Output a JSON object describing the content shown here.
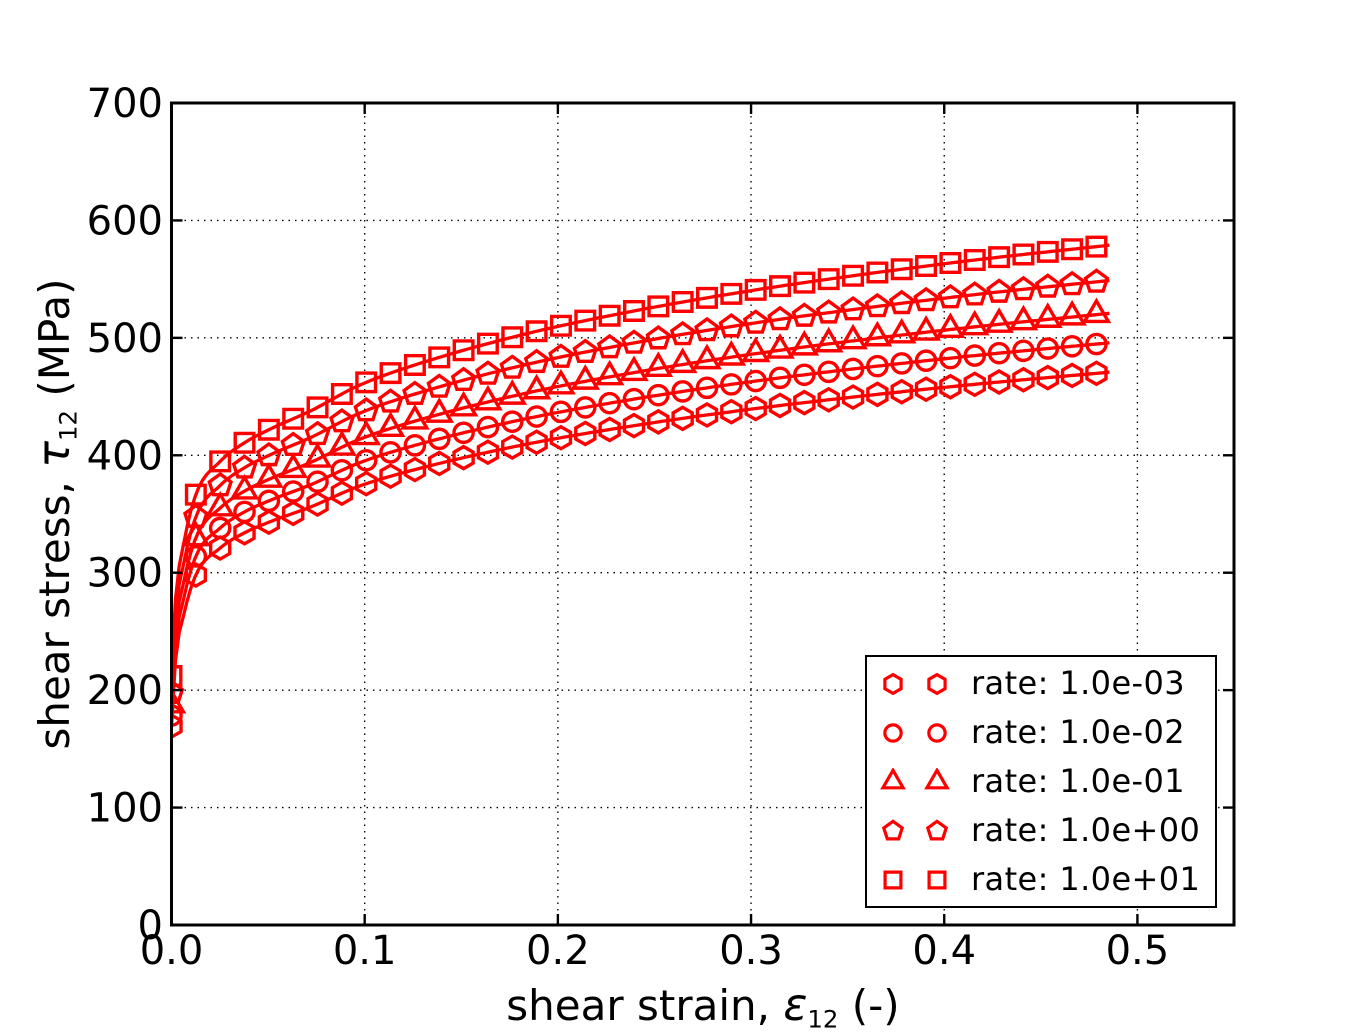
{
  "chart_data": {
    "type": "line",
    "title": "",
    "xlabel": {
      "prefix": "shear strain, ",
      "symbol": "ε",
      "sub": "12",
      "suffix": " (-)"
    },
    "ylabel": {
      "prefix": "shear stress, ",
      "symbol": "τ",
      "sub": "12",
      "suffix": " (MPa)"
    },
    "xlim": [
      0,
      0.55
    ],
    "ylim": [
      0,
      700
    ],
    "xtick_labels": [
      "0.0",
      "0.1",
      "0.2",
      "0.3",
      "0.4",
      "0.5"
    ],
    "xtick_values": [
      0,
      0.1,
      0.2,
      0.3,
      0.4,
      0.5
    ],
    "ytick_labels": [
      "0",
      "100",
      "200",
      "300",
      "400",
      "500",
      "600",
      "700"
    ],
    "ytick_values": [
      0,
      100,
      200,
      300,
      400,
      500,
      600,
      700
    ],
    "grid": {
      "show": true,
      "linestyle": "dotted",
      "color": "#000000"
    },
    "series_color": "#ff0000",
    "marker_face": "none",
    "marker_x": {
      "start": 0,
      "step": 0.0126,
      "end": 0.4788
    },
    "line_x_end": 0.4855,
    "anchor_x": [
      0,
      0.002,
      0.006,
      0.0126,
      0.0252,
      0.0378,
      0.0504,
      0.072,
      0.096,
      0.12,
      0.18,
      0.24,
      0.3,
      0.36,
      0.42,
      0.485
    ],
    "series": [
      {
        "label": "rate: 1.0e-03",
        "marker": "hexagon",
        "y": [
          169.4,
          225.0,
          262.0,
          298.0,
          321.0,
          334.0,
          343.0,
          356.0,
          373.0,
          385.2,
          408.2,
          425.4,
          439.3,
          450.9,
          461.1,
          470.7
        ]
      },
      {
        "label": "rate: 1.0e-02",
        "marker": "circle",
        "y": [
          178.4,
          237.0,
          275.9,
          313.9,
          338.1,
          351.8,
          361.2,
          374.9,
          392.8,
          405.7,
          429.9,
          448.0,
          462.7,
          474.9,
          485.6,
          495.7
        ]
      },
      {
        "label": "rate: 1.0e-01",
        "marker": "triangle",
        "y": [
          187.4,
          248.9,
          289.9,
          329.7,
          355.1,
          369.5,
          379.5,
          393.9,
          412.7,
          426.2,
          451.6,
          470.6,
          486.0,
          498.9,
          510.1,
          520.8
        ]
      },
      {
        "label": "rate: 1.0e+00",
        "marker": "pentagon",
        "y": [
          197.5,
          262.3,
          305.5,
          347.5,
          374.3,
          389.4,
          399.9,
          415.1,
          434.9,
          449.1,
          475.9,
          495.9,
          512.2,
          525.7,
          537.6,
          548.8
        ]
      },
      {
        "label": "rate: 1.0e+01",
        "marker": "square",
        "y": [
          212.0,
          276.7,
          322.2,
          366.5,
          394.8,
          410.7,
          421.8,
          437.8,
          458.7,
          473.7,
          502.0,
          523.1,
          540.2,
          554.5,
          567.1,
          578.8
        ]
      }
    ]
  }
}
